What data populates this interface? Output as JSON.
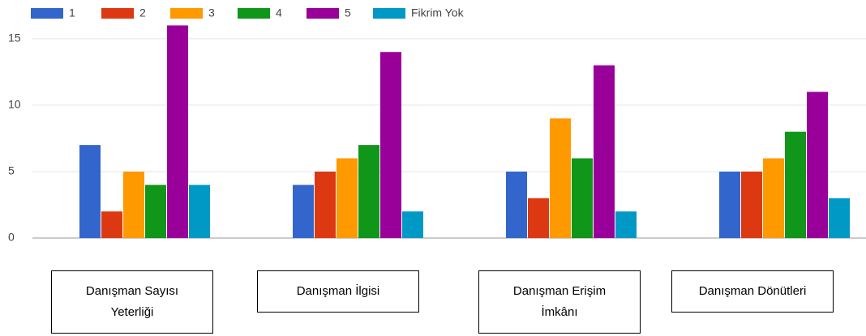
{
  "chart_data": {
    "type": "bar",
    "categories": [
      "Danışman Sayısı Yeterliği",
      "Danışman İlgisi",
      "Danışman Erişim İmkânı",
      "Danışman Dönütleri"
    ],
    "series": [
      {
        "name": "1",
        "color": "#3366cc",
        "values": [
          7,
          4,
          5,
          5
        ]
      },
      {
        "name": "2",
        "color": "#dc3912",
        "values": [
          2,
          5,
          3,
          5
        ]
      },
      {
        "name": "3",
        "color": "#ff9900",
        "values": [
          5,
          6,
          9,
          6
        ]
      },
      {
        "name": "4",
        "color": "#109618",
        "values": [
          4,
          7,
          6,
          8
        ]
      },
      {
        "name": "5",
        "color": "#990099",
        "values": [
          16,
          14,
          13,
          11
        ]
      },
      {
        "name": "Fikrim Yok",
        "color": "#0099c6",
        "values": [
          4,
          2,
          2,
          3
        ]
      }
    ],
    "ylim": [
      0,
      17
    ],
    "yticks": [
      0,
      5,
      10,
      15
    ],
    "grid": true,
    "legend": "top"
  }
}
